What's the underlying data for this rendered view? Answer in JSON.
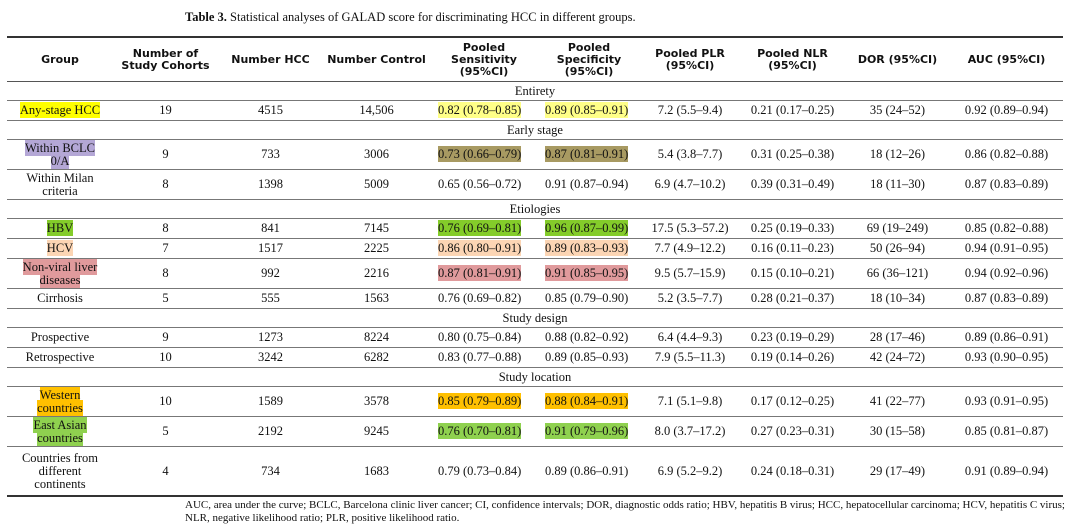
{
  "caption": {
    "label": "Table 3.",
    "text": " Statistical analyses of GALAD score for discriminating HCC in different groups."
  },
  "headers": [
    "Group",
    "Number of Study Cohorts",
    "Number HCC",
    "Number Control",
    "Pooled Sensitivity (95%CI)",
    "Pooled Specificity (95%CI)",
    "Pooled PLR (95%CI)",
    "Pooled NLR (95%CI)",
    "DOR (95%CI)",
    "AUC (95%CI)"
  ],
  "colors": {
    "yellow": "#ffff00",
    "light_yellow": "#ffff88",
    "lavender": "#b4a7d6",
    "olive": "#a89a62",
    "green": "#84cc2a",
    "peach": "#fcd5b4",
    "rose": "#e09a9c",
    "orange": "#ffc000",
    "light_green": "#8fd14f"
  },
  "sections": [
    {
      "title": "Entirety",
      "rows": [
        {
          "group": "Any-stage HCC",
          "cohorts": "19",
          "hcc": "4515",
          "control": "14,506",
          "sens": "0.82 (0.78–0.85)",
          "spec": "0.89 (0.85–0.91)",
          "plr": "7.2 (5.5–9.4)",
          "nlr": "0.21 (0.17–0.25)",
          "dor": "35 (24–52)",
          "auc": "0.92 (0.89–0.94)",
          "lines": 1,
          "hl": {
            "group": "#ffff00",
            "sens": "#ffff88",
            "spec": "#ffff88"
          }
        }
      ]
    },
    {
      "title": "Early stage",
      "rows": [
        {
          "group": "Within BCLC\n0/A",
          "cohorts": "9",
          "hcc": "733",
          "control": "3006",
          "sens": "0.73 (0.66–0.79)",
          "spec": "0.87 (0.81–0.91)",
          "plr": "5.4 (3.8–7.7)",
          "nlr": "0.31 (0.25–0.38)",
          "dor": "18 (12–26)",
          "auc": "0.86 (0.82–0.88)",
          "lines": 2,
          "hl": {
            "group": "#b4a7d6",
            "sens": "#a89a62",
            "spec": "#a89a62"
          }
        },
        {
          "group": "Within Milan\ncriteria",
          "cohorts": "8",
          "hcc": "1398",
          "control": "5009",
          "sens": "0.65 (0.56–0.72)",
          "spec": "0.91 (0.87–0.94)",
          "plr": "6.9 (4.7–10.2)",
          "nlr": "0.39 (0.31–0.49)",
          "dor": "18 (11–30)",
          "auc": "0.87 (0.83–0.89)",
          "lines": 2,
          "hl": {}
        }
      ]
    },
    {
      "title": "Etiologies",
      "rows": [
        {
          "group": "HBV",
          "cohorts": "8",
          "hcc": "841",
          "control": "7145",
          "sens": "0.76 (0.69–0.81)",
          "spec": "0.96 (0.87–0.99)",
          "plr": "17.5 (5.3–57.2)",
          "nlr": "0.25 (0.19–0.33)",
          "dor": "69 (19–249)",
          "auc": "0.85 (0.82–0.88)",
          "lines": 1,
          "hl": {
            "group": "#84cc2a",
            "sens": "#84cc2a",
            "spec": "#84cc2a"
          }
        },
        {
          "group": "HCV",
          "cohorts": "7",
          "hcc": "1517",
          "control": "2225",
          "sens": "0.86 (0.80–0.91)",
          "spec": "0.89 (0.83–0.93)",
          "plr": "7.7 (4.9–12.2)",
          "nlr": "0.16 (0.11–0.23)",
          "dor": "50 (26–94)",
          "auc": "0.94 (0.91–0.95)",
          "lines": 1,
          "hl": {
            "group": "#fcd5b4",
            "sens": "#fcd5b4",
            "spec": "#fcd5b4"
          }
        },
        {
          "group": "Non-viral liver\ndiseases",
          "cohorts": "8",
          "hcc": "992",
          "control": "2216",
          "sens": "0.87 (0.81–0.91)",
          "spec": "0.91 (0.85–0.95)",
          "plr": "9.5 (5.7–15.9)",
          "nlr": "0.15 (0.10–0.21)",
          "dor": "66 (36–121)",
          "auc": "0.94 (0.92–0.96)",
          "lines": 2,
          "hl": {
            "group": "#e09a9c",
            "sens": "#e09a9c",
            "spec": "#e09a9c"
          }
        },
        {
          "group": "Cirrhosis",
          "cohorts": "5",
          "hcc": "555",
          "control": "1563",
          "sens": "0.76 (0.69–0.82)",
          "spec": "0.85 (0.79–0.90)",
          "plr": "5.2 (3.5–7.7)",
          "nlr": "0.28 (0.21–0.37)",
          "dor": "18 (10–34)",
          "auc": "0.87 (0.83–0.89)",
          "lines": 1,
          "hl": {}
        }
      ]
    },
    {
      "title": "Study design",
      "rows": [
        {
          "group": "Prospective",
          "cohorts": "9",
          "hcc": "1273",
          "control": "8224",
          "sens": "0.80 (0.75–0.84)",
          "spec": "0.88 (0.82–0.92)",
          "plr": "6.4 (4.4–9.3)",
          "nlr": "0.23 (0.19–0.29)",
          "dor": "28 (17–46)",
          "auc": "0.89 (0.86–0.91)",
          "lines": 1,
          "hl": {}
        },
        {
          "group": "Retrospective",
          "cohorts": "10",
          "hcc": "3242",
          "control": "6282",
          "sens": "0.83 (0.77–0.88)",
          "spec": "0.89 (0.85–0.93)",
          "plr": "7.9 (5.5–11.3)",
          "nlr": "0.19 (0.14–0.26)",
          "dor": "42 (24–72)",
          "auc": "0.93 (0.90–0.95)",
          "lines": 1,
          "hl": {}
        }
      ]
    },
    {
      "title": "Study location",
      "rows": [
        {
          "group": "Western\ncountries",
          "cohorts": "10",
          "hcc": "1589",
          "control": "3578",
          "sens": "0.85 (0.79–0.89)",
          "spec": "0.88 (0.84–0.91)",
          "plr": "7.1 (5.1–9.8)",
          "nlr": "0.17 (0.12–0.25)",
          "dor": "41 (22–77)",
          "auc": "0.93 (0.91–0.95)",
          "lines": 2,
          "hl": {
            "group": "#ffc000",
            "sens": "#ffc000",
            "spec": "#ffc000"
          }
        },
        {
          "group": "East Asian\ncountries",
          "cohorts": "5",
          "hcc": "2192",
          "control": "9245",
          "sens": "0.76 (0.70–0.81)",
          "spec": "0.91 (0.79–0.96)",
          "plr": "8.0 (3.7–17.2)",
          "nlr": "0.27 (0.23–0.31)",
          "dor": "30 (15–58)",
          "auc": "0.85 (0.81–0.87)",
          "lines": 2,
          "hl": {
            "group": "#8fd14f",
            "sens": "#8fd14f",
            "spec": "#8fd14f"
          }
        },
        {
          "group": "Countries from\ndifferent\ncontinents",
          "cohorts": "4",
          "hcc": "734",
          "control": "1683",
          "sens": "0.79 (0.73–0.84)",
          "spec": "0.89 (0.86–0.91)",
          "plr": "6.9 (5.2–9.2)",
          "nlr": "0.24 (0.18–0.31)",
          "dor": "29 (17–49)",
          "auc": "0.91 (0.89–0.94)",
          "lines": 3,
          "hl": {}
        }
      ]
    }
  ],
  "footnote": "AUC, area under the curve; BCLC, Barcelona clinic liver cancer; CI, confidence intervals; DOR, diagnostic odds ratio; HBV, hepatitis B virus; HCC, hepatocellular carcinoma; HCV, hepatitis C virus; NLR, negative likelihood ratio; PLR, positive likelihood ratio."
}
